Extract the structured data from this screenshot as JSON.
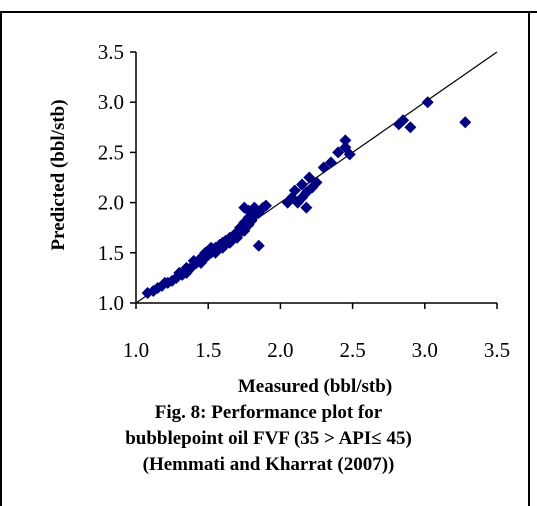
{
  "chart_data": {
    "type": "scatter",
    "title": "",
    "xlabel": "Measured (bbl/stb)",
    "ylabel": "Predicted (bbl/stb)",
    "xlim": [
      1.0,
      3.5
    ],
    "ylim": [
      1.0,
      3.5
    ],
    "x_ticks": [
      "1.0",
      "1.5",
      "2.0",
      "2.5",
      "3.0",
      "3.5"
    ],
    "y_ticks": [
      "1.0",
      "1.5",
      "2.0",
      "2.5",
      "3.0",
      "3.5"
    ],
    "grid": false,
    "marker": "diamond",
    "marker_color": "#000080",
    "reference_line": {
      "from": [
        1.0,
        1.0
      ],
      "to": [
        3.5,
        3.5
      ]
    },
    "points": [
      [
        1.08,
        1.1
      ],
      [
        1.12,
        1.12
      ],
      [
        1.15,
        1.15
      ],
      [
        1.18,
        1.17
      ],
      [
        1.2,
        1.2
      ],
      [
        1.22,
        1.2
      ],
      [
        1.25,
        1.22
      ],
      [
        1.28,
        1.25
      ],
      [
        1.3,
        1.3
      ],
      [
        1.32,
        1.28
      ],
      [
        1.35,
        1.3
      ],
      [
        1.35,
        1.35
      ],
      [
        1.38,
        1.35
      ],
      [
        1.4,
        1.38
      ],
      [
        1.4,
        1.42
      ],
      [
        1.42,
        1.4
      ],
      [
        1.45,
        1.45
      ],
      [
        1.45,
        1.4
      ],
      [
        1.48,
        1.5
      ],
      [
        1.48,
        1.45
      ],
      [
        1.5,
        1.48
      ],
      [
        1.5,
        1.52
      ],
      [
        1.52,
        1.55
      ],
      [
        1.52,
        1.5
      ],
      [
        1.55,
        1.55
      ],
      [
        1.55,
        1.5
      ],
      [
        1.58,
        1.58
      ],
      [
        1.58,
        1.55
      ],
      [
        1.6,
        1.6
      ],
      [
        1.6,
        1.55
      ],
      [
        1.62,
        1.62
      ],
      [
        1.62,
        1.58
      ],
      [
        1.65,
        1.65
      ],
      [
        1.65,
        1.6
      ],
      [
        1.68,
        1.68
      ],
      [
        1.68,
        1.65
      ],
      [
        1.7,
        1.7
      ],
      [
        1.7,
        1.65
      ],
      [
        1.72,
        1.75
      ],
      [
        1.72,
        1.7
      ],
      [
        1.75,
        1.75
      ],
      [
        1.75,
        1.72
      ],
      [
        1.75,
        1.8
      ],
      [
        1.78,
        1.78
      ],
      [
        1.78,
        1.85
      ],
      [
        1.78,
        1.92
      ],
      [
        1.8,
        1.82
      ],
      [
        1.8,
        1.9
      ],
      [
        1.82,
        1.88
      ],
      [
        1.82,
        1.95
      ],
      [
        1.85,
        1.9
      ],
      [
        1.85,
        1.57
      ],
      [
        1.88,
        1.95
      ],
      [
        1.9,
        1.97
      ],
      [
        1.75,
        1.95
      ],
      [
        2.05,
        2.0
      ],
      [
        2.08,
        2.05
      ],
      [
        2.1,
        2.12
      ],
      [
        2.12,
        2.0
      ],
      [
        2.15,
        2.05
      ],
      [
        2.15,
        2.18
      ],
      [
        2.18,
        1.95
      ],
      [
        2.18,
        2.1
      ],
      [
        2.2,
        2.25
      ],
      [
        2.22,
        2.15
      ],
      [
        2.25,
        2.2
      ],
      [
        2.3,
        2.35
      ],
      [
        2.35,
        2.4
      ],
      [
        2.4,
        2.5
      ],
      [
        2.45,
        2.55
      ],
      [
        2.45,
        2.62
      ],
      [
        2.48,
        2.48
      ],
      [
        2.82,
        2.78
      ],
      [
        2.85,
        2.82
      ],
      [
        2.9,
        2.75
      ],
      [
        3.02,
        3.0
      ],
      [
        3.28,
        2.8
      ]
    ]
  },
  "caption": {
    "line1": "Fig. 8: Performance plot for",
    "line2": "bubblepoint oil FVF (35 > API≤ 45)",
    "line3": "(Hemmati and Kharrat (2007))"
  }
}
